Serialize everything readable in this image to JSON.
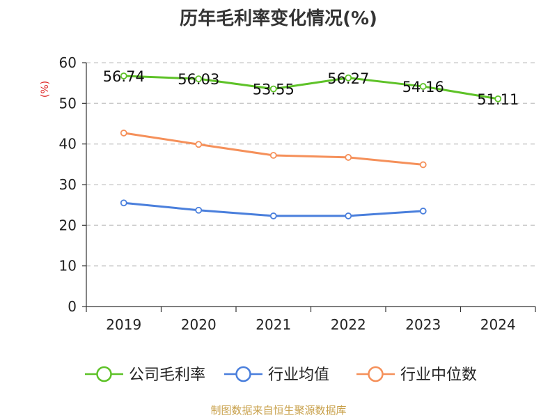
{
  "chart_data": {
    "type": "line",
    "title": "历年毛利率变化情况(%)",
    "ylabel": "(%)",
    "xlabel": "",
    "ylim": [
      0,
      60
    ],
    "yticks": [
      0,
      10,
      20,
      30,
      40,
      50,
      60
    ],
    "grid": true,
    "legend_position": "bottom",
    "categories": [
      "2019",
      "2020",
      "2021",
      "2022",
      "2023",
      "2024"
    ],
    "series": [
      {
        "name": "公司毛利率",
        "color": "#5ec228",
        "values": [
          56.74,
          56.03,
          53.55,
          56.27,
          54.16,
          51.11
        ],
        "labels": [
          "56.74",
          "56.03",
          "53.55",
          "56.27",
          "54.16",
          "51.11"
        ]
      },
      {
        "name": "行业均值",
        "color": "#4a7fdc",
        "values": [
          25.5,
          23.7,
          22.3,
          22.3,
          23.5,
          null
        ]
      },
      {
        "name": "行业中位数",
        "color": "#f5905a",
        "values": [
          42.7,
          39.9,
          37.2,
          36.7,
          34.9,
          null
        ]
      }
    ]
  },
  "source": "制图数据来自恒生聚源数据库"
}
